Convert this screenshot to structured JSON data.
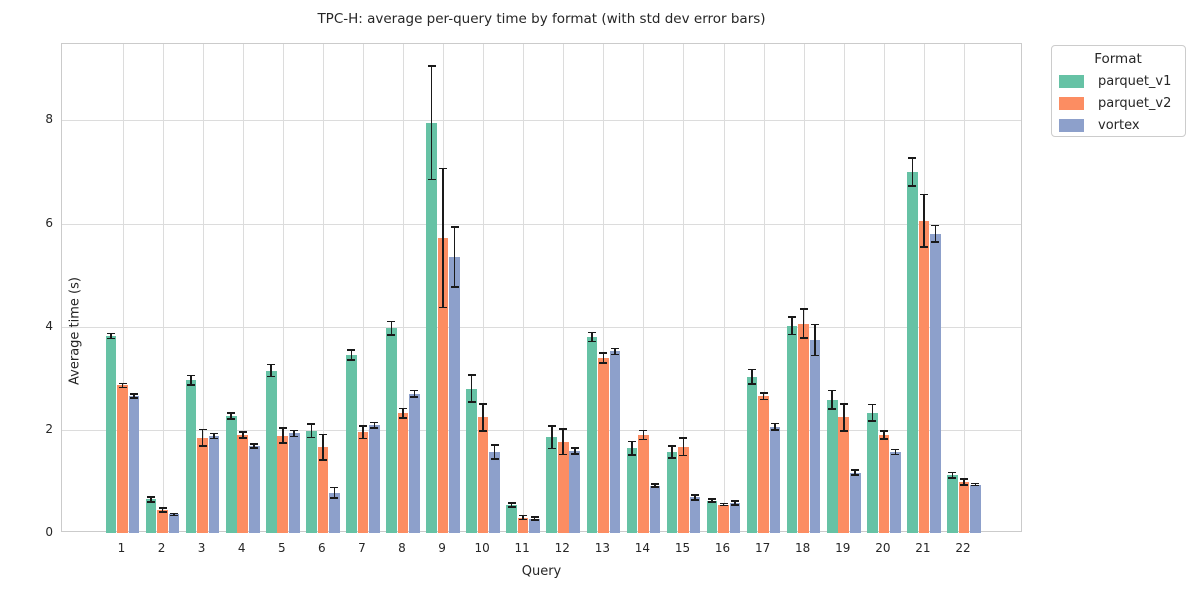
{
  "title": "TPC-H: average per-query time by format (with std dev error bars)",
  "axes": {
    "xlabel": "Query",
    "ylabel": "Average time (s)",
    "yticks": [
      0,
      2,
      4,
      6,
      8
    ],
    "ylim": [
      0,
      9.48
    ],
    "grid": "both"
  },
  "legend": {
    "title": "Format",
    "position": "upper right, outside axes",
    "entries": [
      {
        "label": "parquet_v1",
        "color": "#66c2a5"
      },
      {
        "label": "parquet_v2",
        "color": "#fc8d62"
      },
      {
        "label": "vortex",
        "color": "#8da0cb"
      }
    ]
  },
  "colors": {
    "grid": "#dcdcdc",
    "spine": "#cbcbcb",
    "error_bar": "#1a1a1a",
    "text": "#262626"
  },
  "chart_data": {
    "type": "bar",
    "title": "TPC-H: average per-query time by format (with std dev error bars)",
    "xlabel": "Query",
    "ylabel": "Average time (s)",
    "ylim": [
      0,
      9.48
    ],
    "categories": [
      "1",
      "2",
      "3",
      "4",
      "5",
      "6",
      "7",
      "8",
      "9",
      "10",
      "11",
      "12",
      "13",
      "14",
      "15",
      "16",
      "17",
      "18",
      "19",
      "20",
      "21",
      "22"
    ],
    "series": [
      {
        "name": "parquet_v1",
        "color": "#66c2a5",
        "values": [
          3.82,
          0.65,
          2.96,
          2.27,
          3.15,
          1.98,
          3.45,
          3.97,
          7.95,
          2.8,
          0.54,
          1.86,
          3.8,
          1.64,
          1.57,
          0.63,
          3.03,
          4.02,
          2.58,
          2.33,
          7.0,
          1.12
        ],
        "std_errors": [
          0.05,
          0.05,
          0.09,
          0.06,
          0.12,
          0.13,
          0.1,
          0.13,
          1.1,
          0.26,
          0.04,
          0.22,
          0.09,
          0.13,
          0.12,
          0.03,
          0.14,
          0.17,
          0.18,
          0.16,
          0.27,
          0.05
        ]
      },
      {
        "name": "parquet_v2",
        "color": "#fc8d62",
        "values": [
          2.86,
          0.45,
          1.85,
          1.9,
          1.89,
          1.66,
          1.95,
          2.32,
          5.72,
          2.24,
          0.3,
          1.77,
          3.39,
          1.9,
          1.67,
          0.55,
          2.65,
          4.06,
          2.24,
          1.9,
          6.05,
          0.99
        ],
        "std_errors": [
          0.04,
          0.04,
          0.16,
          0.06,
          0.15,
          0.25,
          0.12,
          0.09,
          1.35,
          0.26,
          0.04,
          0.25,
          0.1,
          0.09,
          0.17,
          0.02,
          0.06,
          0.28,
          0.26,
          0.08,
          0.51,
          0.06
        ]
      },
      {
        "name": "vortex",
        "color": "#8da0cb",
        "values": [
          2.66,
          0.36,
          1.88,
          1.69,
          1.93,
          0.78,
          2.09,
          2.7,
          5.35,
          1.57,
          0.28,
          1.59,
          3.52,
          0.92,
          0.69,
          0.58,
          2.06,
          3.74,
          1.17,
          1.57,
          5.8,
          0.94
        ],
        "std_errors": [
          0.04,
          0.02,
          0.05,
          0.04,
          0.06,
          0.1,
          0.05,
          0.06,
          0.58,
          0.14,
          0.03,
          0.06,
          0.06,
          0.03,
          0.05,
          0.04,
          0.06,
          0.3,
          0.05,
          0.05,
          0.16,
          0.02
        ]
      }
    ]
  }
}
